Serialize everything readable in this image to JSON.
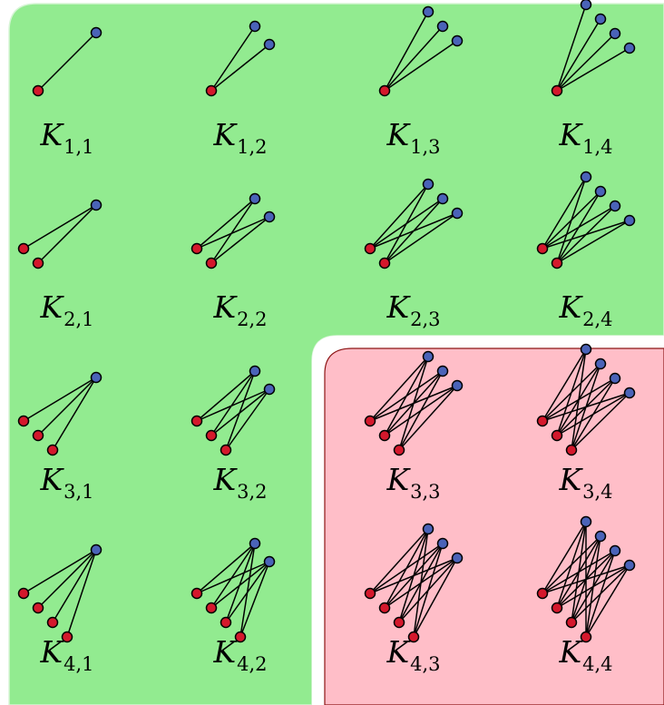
{
  "colors": {
    "planar_region": "#92eb90",
    "planar_region_border": "#d7f5d6",
    "nonplanar_region": "#ffbec8",
    "nonplanar_region_border": "#8c1414",
    "gap": "#ffffff",
    "left_vertex": "#d4182c",
    "right_vertex": "#4a63b8",
    "edge": "#000000"
  },
  "graphs": [
    {
      "m": 1,
      "n": 1,
      "name": "K",
      "sub": "1,1",
      "region": "planar"
    },
    {
      "m": 1,
      "n": 2,
      "name": "K",
      "sub": "1,2",
      "region": "planar"
    },
    {
      "m": 1,
      "n": 3,
      "name": "K",
      "sub": "1,3",
      "region": "planar"
    },
    {
      "m": 1,
      "n": 4,
      "name": "K",
      "sub": "1,4",
      "region": "planar"
    },
    {
      "m": 2,
      "n": 1,
      "name": "K",
      "sub": "2,1",
      "region": "planar"
    },
    {
      "m": 2,
      "n": 2,
      "name": "K",
      "sub": "2,2",
      "region": "planar"
    },
    {
      "m": 2,
      "n": 3,
      "name": "K",
      "sub": "2,3",
      "region": "planar"
    },
    {
      "m": 2,
      "n": 4,
      "name": "K",
      "sub": "2,4",
      "region": "planar"
    },
    {
      "m": 3,
      "n": 1,
      "name": "K",
      "sub": "3,1",
      "region": "planar"
    },
    {
      "m": 3,
      "n": 2,
      "name": "K",
      "sub": "3,2",
      "region": "planar"
    },
    {
      "m": 3,
      "n": 3,
      "name": "K",
      "sub": "3,3",
      "region": "nonplanar"
    },
    {
      "m": 3,
      "n": 4,
      "name": "K",
      "sub": "3,4",
      "region": "nonplanar"
    },
    {
      "m": 4,
      "n": 1,
      "name": "K",
      "sub": "4,1",
      "region": "planar"
    },
    {
      "m": 4,
      "n": 2,
      "name": "K",
      "sub": "4,2",
      "region": "planar"
    },
    {
      "m": 4,
      "n": 3,
      "name": "K",
      "sub": "4,3",
      "region": "nonplanar"
    },
    {
      "m": 4,
      "n": 4,
      "name": "K",
      "sub": "4,4",
      "region": "nonplanar"
    }
  ]
}
